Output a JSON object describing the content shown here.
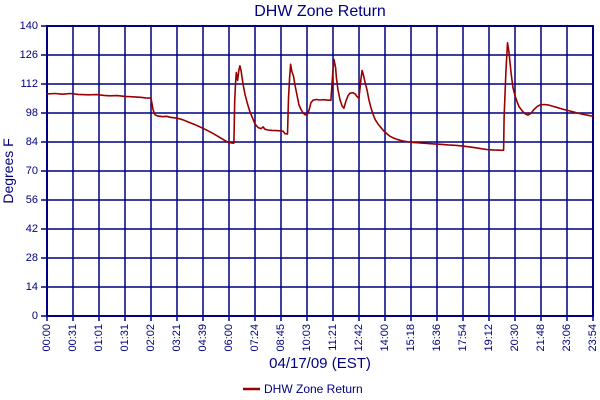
{
  "title": "DHW Zone Return",
  "colors": {
    "axis": "#000080",
    "grid": "#000080",
    "text": "#000080",
    "series": "#990000",
    "background": "#ffffff"
  },
  "legend": {
    "label": "DHW Zone Return",
    "position": "bottom"
  },
  "chart_data": {
    "type": "line",
    "title": "DHW Zone Return",
    "xlabel": "04/17/09 (EST)",
    "ylabel": "Degrees F",
    "ylim": [
      0,
      140
    ],
    "y_tick_step": 14,
    "y_tick_labels": [
      140,
      126,
      112,
      98,
      84,
      70,
      56,
      42,
      28,
      14,
      0
    ],
    "x_tick_labels": [
      "00:00",
      "00:31",
      "01:01",
      "01:31",
      "02:02",
      "03:21",
      "04:39",
      "06:00",
      "07:24",
      "08:45",
      "10:03",
      "11:21",
      "12:42",
      "14:00",
      "15:18",
      "16:36",
      "17:54",
      "19:12",
      "20:30",
      "21:48",
      "23:06",
      "23:54"
    ],
    "grid": true,
    "legend_position": "bottom",
    "series": [
      {
        "name": "DHW Zone Return",
        "color": "#990000",
        "x_unit": "tick-index (maps to x_tick_labels)",
        "y_unit": "Degrees F",
        "points": [
          [
            0,
            107.2
          ],
          [
            0.3,
            107.4
          ],
          [
            0.6,
            107.1
          ],
          [
            0.9,
            107.4
          ],
          [
            1.2,
            107.0
          ],
          [
            1.6,
            106.8
          ],
          [
            1.9,
            106.9
          ],
          [
            2.2,
            106.5
          ],
          [
            2.4,
            106.3
          ],
          [
            2.7,
            106.4
          ],
          [
            3.0,
            106.0
          ],
          [
            3.3,
            105.8
          ],
          [
            3.6,
            105.6
          ],
          [
            3.8,
            105.3
          ],
          [
            4.0,
            105.2
          ],
          [
            4.08,
            99.5
          ],
          [
            4.15,
            97.2
          ],
          [
            4.27,
            96.5
          ],
          [
            4.46,
            96.2
          ],
          [
            4.6,
            96.4
          ],
          [
            4.75,
            95.9
          ],
          [
            4.9,
            95.7
          ],
          [
            5.04,
            95.4
          ],
          [
            5.23,
            94.7
          ],
          [
            5.42,
            93.7
          ],
          [
            5.65,
            92.6
          ],
          [
            5.88,
            91.3
          ],
          [
            6.12,
            89.9
          ],
          [
            6.35,
            88.4
          ],
          [
            6.58,
            86.7
          ],
          [
            6.81,
            84.9
          ],
          [
            6.96,
            83.9
          ],
          [
            7.1,
            83.5
          ],
          [
            7.19,
            83.4
          ],
          [
            7.22,
            104.0
          ],
          [
            7.25,
            112.0
          ],
          [
            7.28,
            117.5
          ],
          [
            7.33,
            113.8
          ],
          [
            7.38,
            118.8
          ],
          [
            7.42,
            120.8
          ],
          [
            7.46,
            118.6
          ],
          [
            7.54,
            112.0
          ],
          [
            7.62,
            106.8
          ],
          [
            7.71,
            102.4
          ],
          [
            7.81,
            98.4
          ],
          [
            7.9,
            95.7
          ],
          [
            8.0,
            92.7
          ],
          [
            8.12,
            91.0
          ],
          [
            8.23,
            90.4
          ],
          [
            8.31,
            91.3
          ],
          [
            8.38,
            90.2
          ],
          [
            8.5,
            89.8
          ],
          [
            8.65,
            89.6
          ],
          [
            8.81,
            89.5
          ],
          [
            8.96,
            89.4
          ],
          [
            9.08,
            89.2
          ],
          [
            9.15,
            88.0
          ],
          [
            9.25,
            87.9
          ],
          [
            9.29,
            105.0
          ],
          [
            9.33,
            115.0
          ],
          [
            9.37,
            121.5
          ],
          [
            9.42,
            118.0
          ],
          [
            9.48,
            115.8
          ],
          [
            9.54,
            111.4
          ],
          [
            9.62,
            106.4
          ],
          [
            9.69,
            102.0
          ],
          [
            9.77,
            99.7
          ],
          [
            9.85,
            98.1
          ],
          [
            9.92,
            97.2
          ],
          [
            10.0,
            97.0
          ],
          [
            10.08,
            99.4
          ],
          [
            10.15,
            102.9
          ],
          [
            10.23,
            104.2
          ],
          [
            10.35,
            104.5
          ],
          [
            10.5,
            104.3
          ],
          [
            10.65,
            104.4
          ],
          [
            10.81,
            104.2
          ],
          [
            10.92,
            104.2
          ],
          [
            10.96,
            112.0
          ],
          [
            11.0,
            119.0
          ],
          [
            11.04,
            123.8
          ],
          [
            11.1,
            119.9
          ],
          [
            11.13,
            115.0
          ],
          [
            11.19,
            109.4
          ],
          [
            11.27,
            104.4
          ],
          [
            11.35,
            101.4
          ],
          [
            11.42,
            100.3
          ],
          [
            11.5,
            103.9
          ],
          [
            11.58,
            106.4
          ],
          [
            11.65,
            107.5
          ],
          [
            11.77,
            107.8
          ],
          [
            11.85,
            107.2
          ],
          [
            11.92,
            106.0
          ],
          [
            12.0,
            105.2
          ],
          [
            12.04,
            110.0
          ],
          [
            12.08,
            115.0
          ],
          [
            12.12,
            118.5
          ],
          [
            12.17,
            116.4
          ],
          [
            12.23,
            112.9
          ],
          [
            12.31,
            108.9
          ],
          [
            12.38,
            104.4
          ],
          [
            12.46,
            100.4
          ],
          [
            12.54,
            97.4
          ],
          [
            12.62,
            94.9
          ],
          [
            12.73,
            92.7
          ],
          [
            12.85,
            90.9
          ],
          [
            12.96,
            89.2
          ],
          [
            13.08,
            87.9
          ],
          [
            13.19,
            86.8
          ],
          [
            13.35,
            85.8
          ],
          [
            13.5,
            85.1
          ],
          [
            13.69,
            84.5
          ],
          [
            13.88,
            84.1
          ],
          [
            14.08,
            83.8
          ],
          [
            14.35,
            83.5
          ],
          [
            14.62,
            83.3
          ],
          [
            14.88,
            83.1
          ],
          [
            15.15,
            82.9
          ],
          [
            15.42,
            82.6
          ],
          [
            15.69,
            82.4
          ],
          [
            15.96,
            82.1
          ],
          [
            16.23,
            81.7
          ],
          [
            16.5,
            81.2
          ],
          [
            16.73,
            80.7
          ],
          [
            16.92,
            80.4
          ],
          [
            17.12,
            80.2
          ],
          [
            17.31,
            80.1
          ],
          [
            17.5,
            80.0
          ],
          [
            17.56,
            80.0
          ],
          [
            17.58,
            96.0
          ],
          [
            17.62,
            108.0
          ],
          [
            17.65,
            118.0
          ],
          [
            17.71,
            131.9
          ],
          [
            17.77,
            127.2
          ],
          [
            17.85,
            117.2
          ],
          [
            17.92,
            110.4
          ],
          [
            18.0,
            106.4
          ],
          [
            18.08,
            103.4
          ],
          [
            18.15,
            101.2
          ],
          [
            18.27,
            99.1
          ],
          [
            18.38,
            97.7
          ],
          [
            18.5,
            97.0
          ],
          [
            18.62,
            97.9
          ],
          [
            18.73,
            99.7
          ],
          [
            18.85,
            101.1
          ],
          [
            18.96,
            101.9
          ],
          [
            19.12,
            102.1
          ],
          [
            19.27,
            101.9
          ],
          [
            19.42,
            101.4
          ],
          [
            19.58,
            100.8
          ],
          [
            19.73,
            100.2
          ],
          [
            19.88,
            99.7
          ],
          [
            20.04,
            99.2
          ],
          [
            20.19,
            98.7
          ],
          [
            20.35,
            98.2
          ],
          [
            20.5,
            97.7
          ],
          [
            20.65,
            97.3
          ],
          [
            20.81,
            96.9
          ],
          [
            20.92,
            96.6
          ],
          [
            21.0,
            96.4
          ]
        ]
      }
    ]
  }
}
